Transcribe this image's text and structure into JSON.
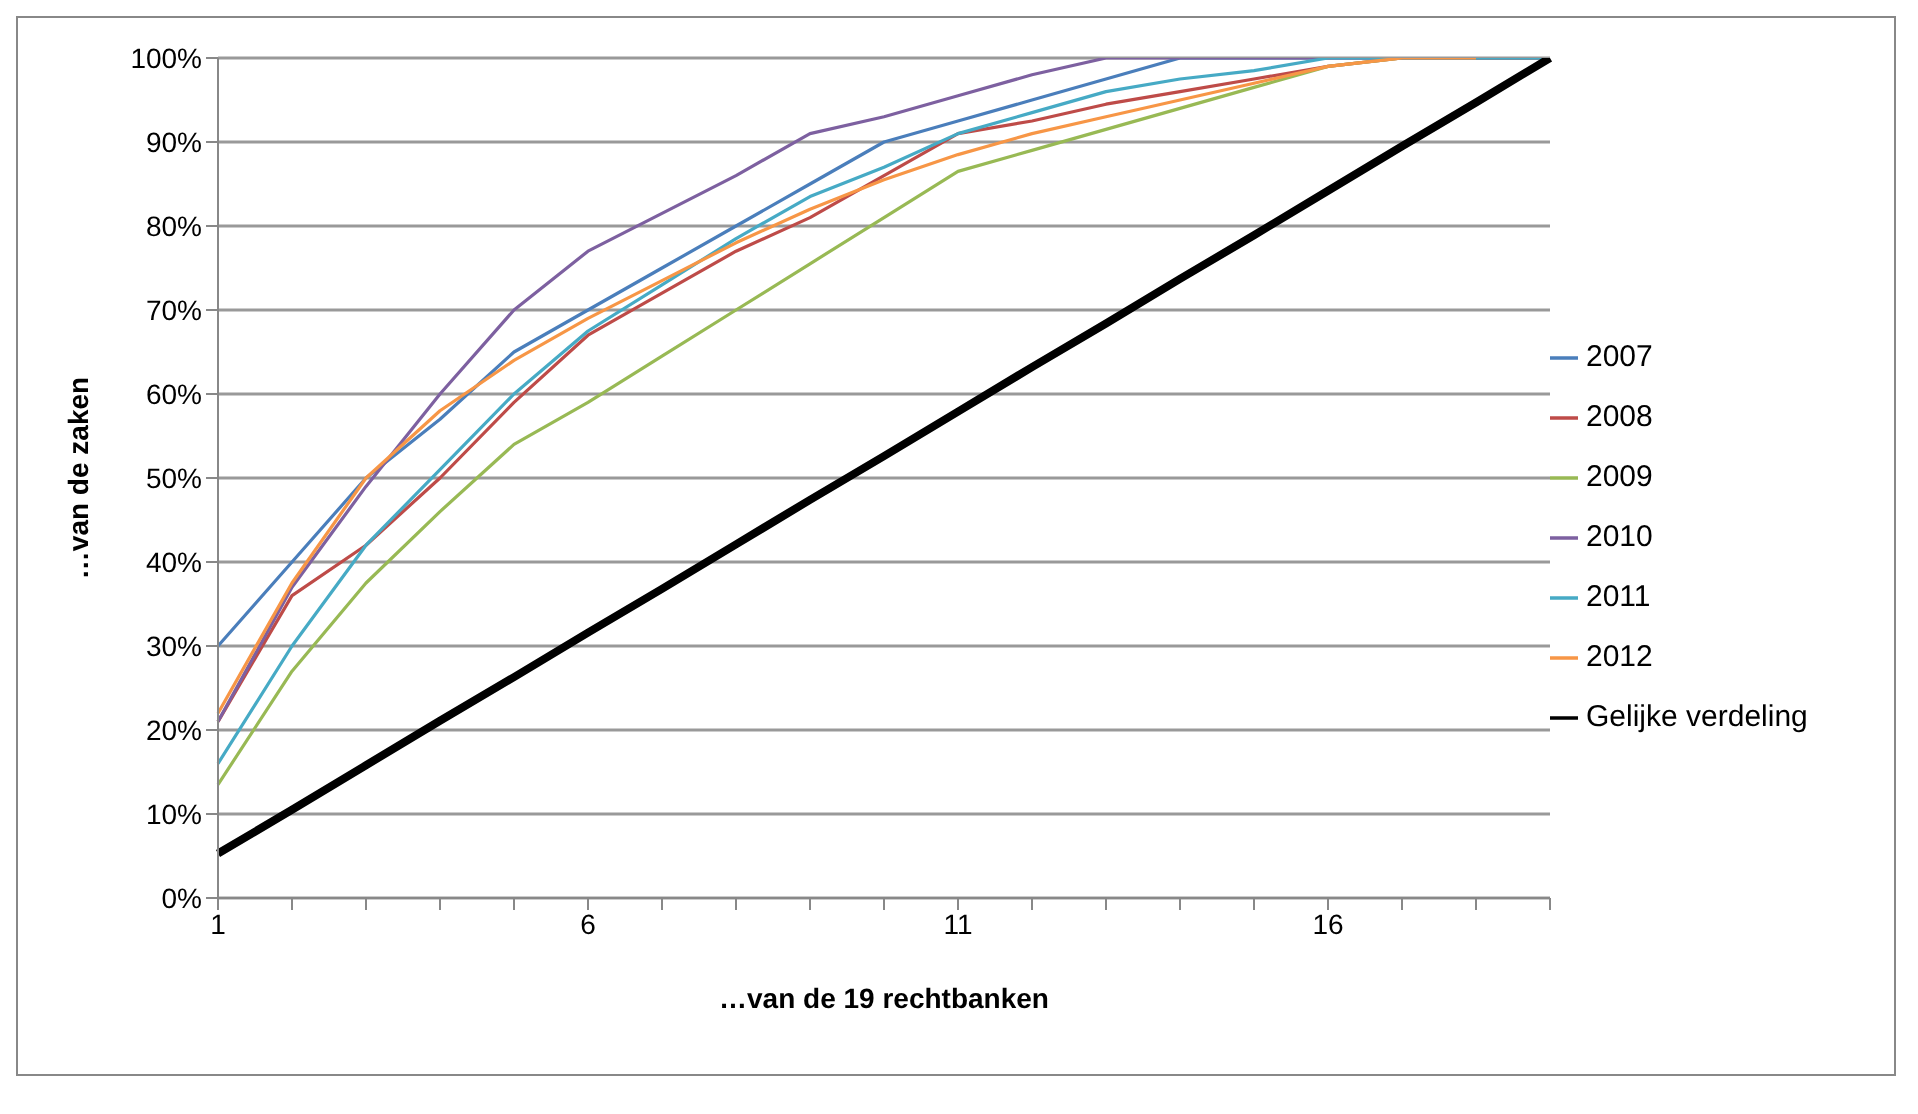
{
  "chart_data": {
    "type": "line",
    "xlabel": "…van de 19 rechtbanken",
    "ylabel": "…van de zaken",
    "categories": [
      "1",
      null,
      null,
      null,
      null,
      "6",
      null,
      null,
      null,
      null,
      "11",
      null,
      null,
      null,
      null,
      "16",
      null,
      null,
      null
    ],
    "series": [
      {
        "name": "2007",
        "color": "#4a7ebb",
        "values": [
          30,
          40,
          50,
          57,
          65,
          70,
          75,
          80,
          85,
          90,
          92.5,
          95,
          97.5,
          100,
          100,
          100,
          100,
          100,
          100
        ]
      },
      {
        "name": "2008",
        "color": "#be4b48",
        "values": [
          21,
          36,
          42,
          50,
          59,
          67,
          72,
          77,
          81,
          86,
          91,
          92.5,
          94.5,
          96,
          97.5,
          99,
          100,
          100,
          100
        ]
      },
      {
        "name": "2009",
        "color": "#98b954",
        "values": [
          13.5,
          27,
          37.5,
          46,
          54,
          59,
          64.5,
          70,
          75.5,
          81,
          86.5,
          89,
          91.5,
          94,
          96.5,
          99,
          100,
          100,
          100
        ]
      },
      {
        "name": "2010",
        "color": "#7d60a0",
        "values": [
          21,
          37,
          49,
          60,
          70,
          77,
          81.5,
          86,
          91,
          93,
          95.5,
          98,
          100,
          100,
          100,
          100,
          100,
          100,
          100
        ]
      },
      {
        "name": "2011",
        "color": "#46aac5",
        "values": [
          16,
          30,
          42,
          51,
          60,
          67.5,
          73,
          78.5,
          83.5,
          87,
          91,
          93.5,
          96,
          97.5,
          98.5,
          100,
          100,
          100,
          100
        ]
      },
      {
        "name": "2012",
        "color": "#f79646",
        "values": [
          22,
          37.5,
          50,
          58,
          64,
          69,
          73.5,
          78,
          82,
          85.5,
          88.5,
          91,
          93,
          95,
          97,
          99,
          100,
          100,
          null
        ]
      },
      {
        "name": "Gelijke verdeling",
        "color": "#000000",
        "values": [
          5.3,
          10.5,
          15.8,
          21.1,
          26.3,
          31.6,
          36.8,
          42.1,
          47.4,
          52.6,
          57.9,
          63.2,
          68.4,
          73.7,
          78.9,
          84.2,
          89.5,
          94.7,
          100
        ]
      }
    ],
    "ylim": [
      0,
      100
    ],
    "yticks": [
      {
        "value": 0,
        "label": "0%"
      },
      {
        "value": 10,
        "label": "10%"
      },
      {
        "value": 20,
        "label": "20%"
      },
      {
        "value": 30,
        "label": "30%"
      },
      {
        "value": 40,
        "label": "40%"
      },
      {
        "value": 50,
        "label": "50%"
      },
      {
        "value": 60,
        "label": "60%"
      },
      {
        "value": 70,
        "label": "70%"
      },
      {
        "value": 80,
        "label": "80%"
      },
      {
        "value": 90,
        "label": "90%"
      },
      {
        "value": 100,
        "label": "100%"
      }
    ],
    "grid": "y",
    "legend": "right",
    "marker": "none",
    "line_style": "solid"
  }
}
